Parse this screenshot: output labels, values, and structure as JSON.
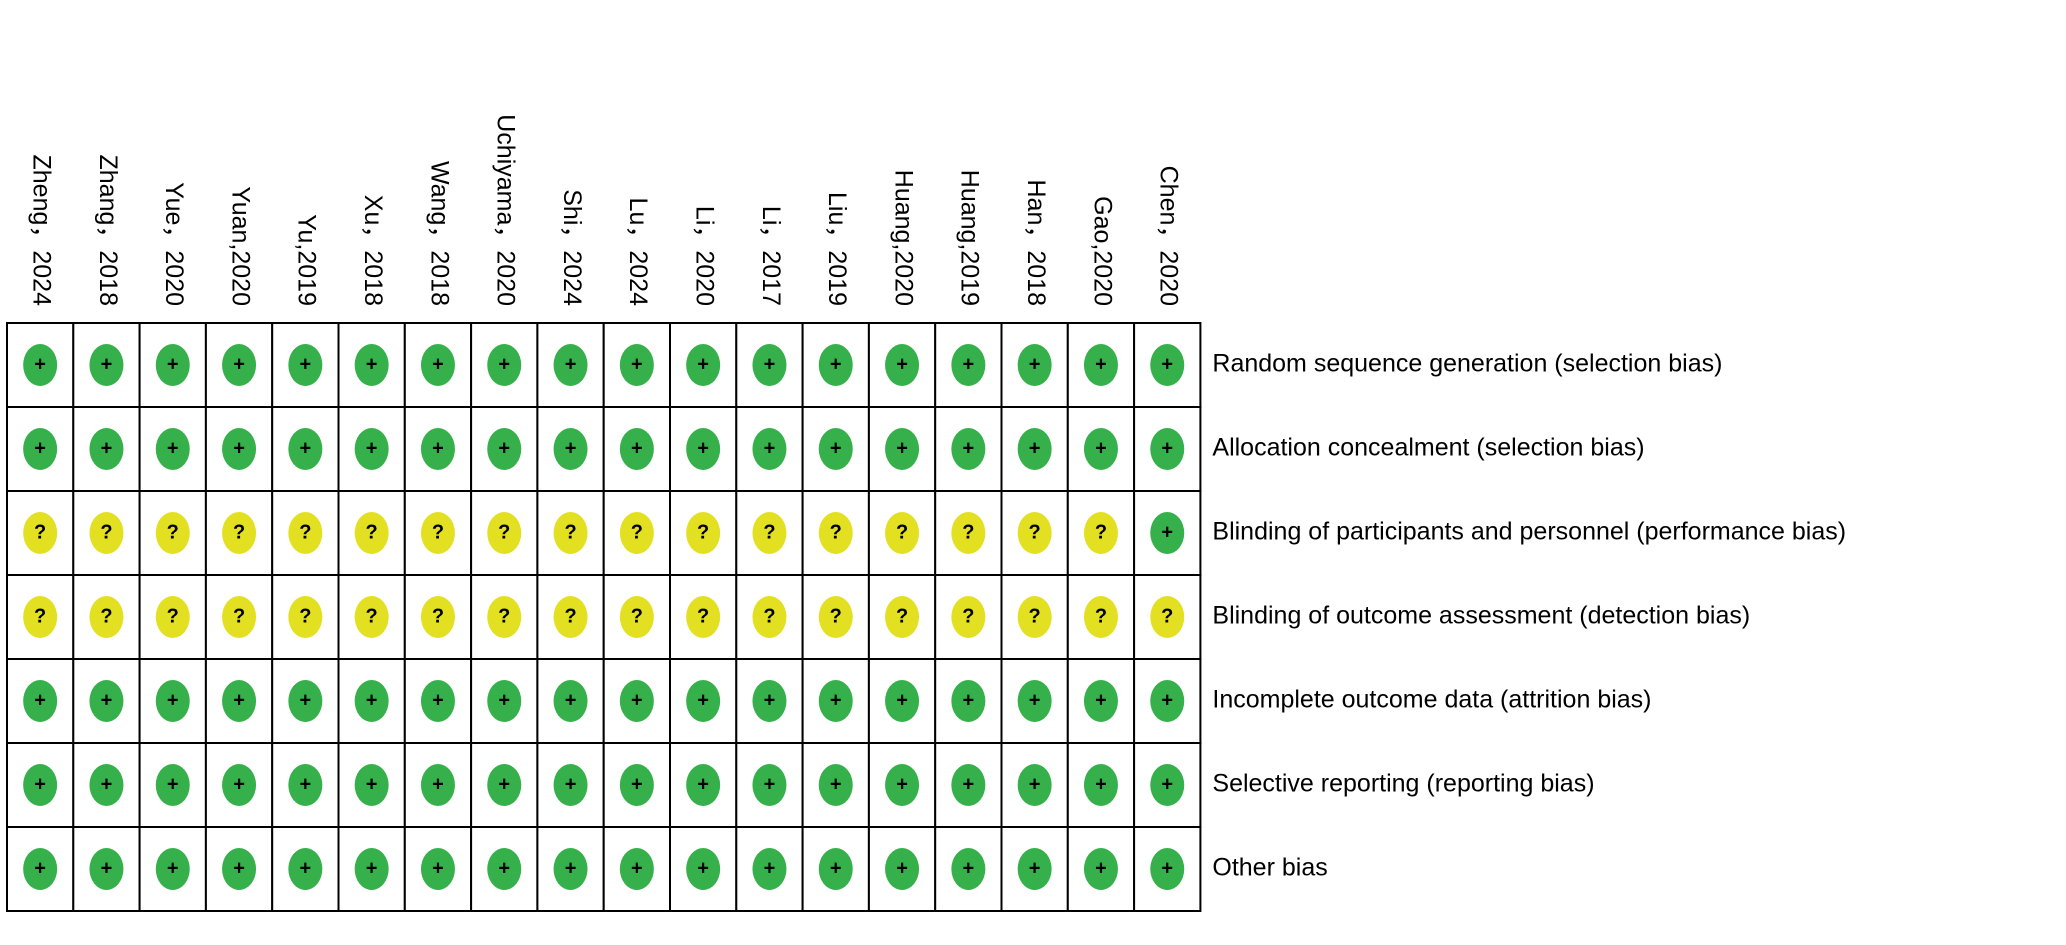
{
  "studies": [
    "Zheng，2024",
    "Zhang，2018",
    "Yue，2020",
    "Yuan,2020",
    "Yu,2019",
    "Xu，2018",
    "Wang，2018",
    "Uchiyama，2020",
    "Shi，2024",
    "Lu，2024",
    "Li，2020",
    "Li，2017",
    "Liu，2019",
    "Huang,2020",
    "Huang,2019",
    "Han，2018",
    "Gao,2020",
    "Chen，2020"
  ],
  "domains": [
    "Random sequence generation (selection bias)",
    "Allocation concealment (selection bias)",
    "Blinding of participants and personnel (performance bias)",
    "Blinding of outcome assessment (detection bias)",
    "Incomplete outcome data (attrition bias)",
    "Selective reporting (reporting bias)",
    "Other bias"
  ],
  "judgments": [
    [
      "+",
      "+",
      "+",
      "+",
      "+",
      "+",
      "+",
      "+",
      "+",
      "+",
      "+",
      "+",
      "+",
      "+",
      "+",
      "+",
      "+",
      "+"
    ],
    [
      "+",
      "+",
      "+",
      "+",
      "+",
      "+",
      "+",
      "+",
      "+",
      "+",
      "+",
      "+",
      "+",
      "+",
      "+",
      "+",
      "+",
      "+"
    ],
    [
      "?",
      "?",
      "?",
      "?",
      "?",
      "?",
      "?",
      "?",
      "?",
      "?",
      "?",
      "?",
      "?",
      "?",
      "?",
      "?",
      "?",
      "+"
    ],
    [
      "?",
      "?",
      "?",
      "?",
      "?",
      "?",
      "?",
      "?",
      "?",
      "?",
      "?",
      "?",
      "?",
      "?",
      "?",
      "?",
      "?",
      "?"
    ],
    [
      "+",
      "+",
      "+",
      "+",
      "+",
      "+",
      "+",
      "+",
      "+",
      "+",
      "+",
      "+",
      "+",
      "+",
      "+",
      "+",
      "+",
      "+"
    ],
    [
      "+",
      "+",
      "+",
      "+",
      "+",
      "+",
      "+",
      "+",
      "+",
      "+",
      "+",
      "+",
      "+",
      "+",
      "+",
      "+",
      "+",
      "+"
    ],
    [
      "+",
      "+",
      "+",
      "+",
      "+",
      "+",
      "+",
      "+",
      "+",
      "+",
      "+",
      "+",
      "+",
      "+",
      "+",
      "+",
      "+",
      "+"
    ]
  ]
}
